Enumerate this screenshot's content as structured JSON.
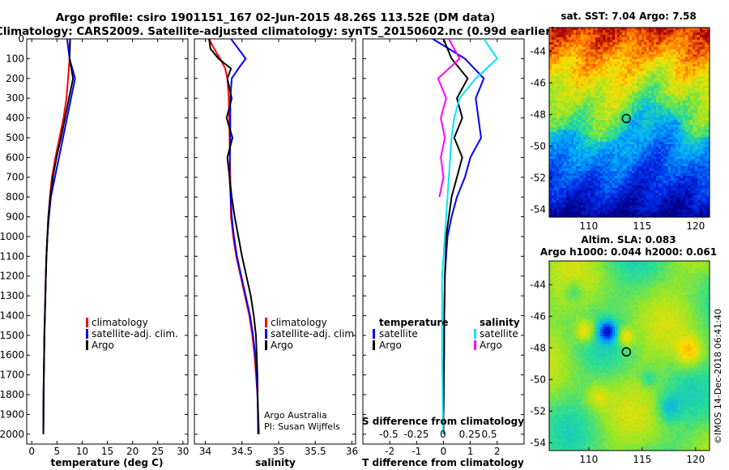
{
  "header": {
    "line1": "Argo profile: csiro 1901151_167 02-Jun-2015 48.26S 113.52E (DM data)",
    "line2": "Climatology: CARS2009. Satellite-adjusted climatology: synTS_20150602.nc (0.99d earlier)"
  },
  "colors": {
    "climatology": "#ff0000",
    "satellite": "#0000ff",
    "argo": "#000000",
    "salinity": "#00e5ff",
    "argo_s_diff": "#ff00ff"
  },
  "chart_data": [
    {
      "type": "line",
      "panel": "temperature",
      "xlabel": "temperature (deg C)",
      "xlim": [
        -1,
        31
      ],
      "xticks": [
        0,
        5,
        10,
        15,
        20,
        25,
        30
      ],
      "ylim": [
        2050,
        0
      ],
      "yticks": [
        0,
        100,
        200,
        300,
        400,
        500,
        600,
        700,
        800,
        900,
        1000,
        1100,
        1200,
        1300,
        1400,
        1500,
        1600,
        1700,
        1800,
        1900,
        2000
      ],
      "legend": [
        "climatology",
        "satellite-adj. clim.",
        "Argo"
      ],
      "series": [
        {
          "name": "climatology",
          "color": "#ff0000",
          "x": [
            7.6,
            7.5,
            7.2,
            6.9,
            6.3,
            5.5,
            4.7,
            4.0,
            3.6,
            3.3,
            3.1,
            2.9,
            2.8,
            2.7,
            2.6,
            2.5,
            2.45,
            2.4,
            2.35,
            2.3
          ],
          "y": [
            0,
            100,
            200,
            300,
            400,
            500,
            600,
            700,
            800,
            900,
            1000,
            1100,
            1200,
            1300,
            1400,
            1500,
            1600,
            1700,
            1800,
            2000
          ]
        },
        {
          "name": "satellite-adj. clim.",
          "color": "#0000ff",
          "x": [
            7.0,
            7.5,
            8.6,
            7.8,
            7.0,
            6.2,
            5.4,
            4.6,
            3.8,
            3.4,
            3.1,
            2.9,
            2.8,
            2.7,
            2.6,
            2.5,
            2.45,
            2.4,
            2.35,
            2.3
          ],
          "y": [
            0,
            100,
            200,
            300,
            400,
            500,
            600,
            700,
            800,
            900,
            1000,
            1100,
            1200,
            1300,
            1400,
            1500,
            1600,
            1700,
            1800,
            2000
          ]
        },
        {
          "name": "Argo",
          "color": "#000000",
          "x": [
            7.6,
            7.5,
            8.2,
            7.4,
            6.6,
            5.8,
            4.9,
            4.2,
            3.7,
            3.3,
            3.1,
            2.9,
            2.8,
            2.7,
            2.6,
            2.5,
            2.45,
            2.4,
            2.35,
            2.3
          ],
          "y": [
            0,
            100,
            200,
            300,
            400,
            500,
            600,
            700,
            800,
            900,
            1000,
            1100,
            1200,
            1300,
            1400,
            1500,
            1600,
            1700,
            1800,
            2000
          ]
        }
      ]
    },
    {
      "type": "line",
      "panel": "salinity",
      "xlabel": "salinity",
      "xlim": [
        33.85,
        36.05
      ],
      "xticks": [
        34,
        34.5,
        35,
        35.5,
        36
      ],
      "ylim": [
        2050,
        0
      ],
      "legend": [
        "climatology",
        "satellite-adj. clim.",
        "Argo"
      ],
      "annotations": [
        "Argo Australia",
        "PI: Susan Wijffels"
      ],
      "series": [
        {
          "name": "climatology",
          "color": "#ff0000",
          "x": [
            34.05,
            34.12,
            34.2,
            34.27,
            34.3,
            34.32,
            34.33,
            34.34,
            34.35,
            34.38,
            34.42,
            34.48,
            34.54,
            34.6,
            34.64,
            34.67,
            34.69,
            34.71,
            34.72,
            34.73
          ],
          "y": [
            0,
            50,
            100,
            150,
            200,
            300,
            500,
            700,
            900,
            1000,
            1100,
            1200,
            1300,
            1400,
            1500,
            1600,
            1700,
            1800,
            1900,
            2000
          ]
        },
        {
          "name": "satellite-adj. clim.",
          "color": "#0000ff",
          "x": [
            34.35,
            34.45,
            34.55,
            34.45,
            34.36,
            34.34,
            34.34,
            34.33,
            34.36,
            34.39,
            34.43,
            34.49,
            34.55,
            34.61,
            34.65,
            34.68,
            34.7,
            34.71,
            34.72,
            34.73
          ],
          "y": [
            0,
            50,
            100,
            150,
            200,
            300,
            500,
            700,
            900,
            1000,
            1100,
            1200,
            1300,
            1400,
            1500,
            1600,
            1700,
            1800,
            1900,
            2000
          ]
        },
        {
          "name": "Argo",
          "color": "#000000",
          "x": [
            34.05,
            34.07,
            34.18,
            34.35,
            34.3,
            34.36,
            34.29,
            34.37,
            34.3,
            34.33,
            34.36,
            34.4,
            34.45,
            34.5,
            34.56,
            34.62,
            34.66,
            34.69,
            34.71,
            34.72
          ],
          "y": [
            0,
            50,
            100,
            150,
            200,
            300,
            400,
            500,
            600,
            700,
            800,
            900,
            1000,
            1100,
            1200,
            1300,
            1400,
            1500,
            1700,
            2000
          ]
        }
      ]
    },
    {
      "type": "line",
      "panel": "difference",
      "xlabel": "T difference from climatology",
      "xlim": [
        -3,
        3
      ],
      "xticks": [
        -2,
        -1,
        0,
        1,
        2
      ],
      "top_label": "S difference from climatology",
      "top_ticks": [
        "-0.5",
        "-0.25",
        "0",
        "0.25",
        "0.5"
      ],
      "ylim": [
        2050,
        0
      ],
      "legend_left_title": "temperature",
      "legend_right_title": "salinity",
      "legend_left": [
        "satellite",
        "Argo"
      ],
      "legend_right": [
        "satellite",
        "Argo"
      ],
      "series": [
        {
          "name": "T satellite",
          "color": "#0000ff",
          "x": [
            -0.4,
            0.8,
            1.5,
            1.2,
            1.3,
            1.4,
            1.0,
            0.8,
            0.5,
            0.3,
            0.15,
            0.1,
            0.05,
            0.03,
            0.02,
            0.01,
            0.0,
            0.0
          ],
          "y": [
            0,
            100,
            200,
            300,
            400,
            500,
            600,
            700,
            800,
            900,
            1000,
            1100,
            1200,
            1400,
            1600,
            1800,
            1900,
            2000
          ]
        },
        {
          "name": "T Argo",
          "color": "#000000",
          "x": [
            0.0,
            0.3,
            0.9,
            0.5,
            0.7,
            0.4,
            0.7,
            0.5,
            0.3,
            0.2,
            0.1,
            0.08,
            0.05,
            0.03,
            0.02,
            0.01,
            0.0,
            0.0
          ],
          "y": [
            0,
            100,
            200,
            300,
            400,
            500,
            600,
            700,
            800,
            900,
            1000,
            1100,
            1200,
            1400,
            1600,
            1800,
            1900,
            2000
          ]
        },
        {
          "name": "S satellite",
          "color": "#00e5ff",
          "x": [
            1.5,
            2.0,
            1.2,
            0.6,
            0.4,
            0.3,
            0.25,
            0.2,
            0.15,
            0.1,
            0.05,
            0.0,
            -0.05,
            -0.05,
            -0.05,
            -0.03,
            -0.02,
            -0.02
          ],
          "y": [
            0,
            100,
            200,
            300,
            400,
            500,
            600,
            700,
            800,
            900,
            1000,
            1100,
            1200,
            1400,
            1600,
            1800,
            1900,
            2000
          ]
        },
        {
          "name": "S Argo",
          "color": "#ff00ff",
          "x": [
            0.2,
            0.6,
            -0.2,
            0.1,
            -0.1,
            0.05,
            -0.1,
            0.0,
            -0.15
          ],
          "y": [
            0,
            100,
            200,
            300,
            400,
            500,
            600,
            700,
            800
          ]
        }
      ]
    },
    {
      "type": "heatmap",
      "panel": "sst_map",
      "title": "sat. SST: 7.04 Argo: 7.58",
      "xticks": [
        110,
        115,
        120
      ],
      "yticks": [
        -44,
        -46,
        -48,
        -50,
        -52,
        -54
      ],
      "xlim": [
        106.3,
        121.3
      ],
      "ylim": [
        -54.5,
        -42.5
      ],
      "argo_position": [
        113.52,
        -48.26
      ]
    },
    {
      "type": "heatmap",
      "panel": "sla_map",
      "title": "Altim. SLA: 0.083",
      "subtitle": "Argo h1000: 0.044 h2000: 0.061",
      "xticks": [
        110,
        115,
        120
      ],
      "yticks": [
        -44,
        -46,
        -48,
        -50,
        -52,
        -54
      ],
      "xlim": [
        106.3,
        121.3
      ],
      "ylim": [
        -54.5,
        -42.5
      ],
      "argo_position": [
        113.52,
        -48.26
      ]
    }
  ],
  "credits": {
    "line1": "Argo Australia",
    "line2": "PI: Susan Wijffels",
    "stamp": "©IMOS 14-Dec-2018 06:41:40"
  }
}
